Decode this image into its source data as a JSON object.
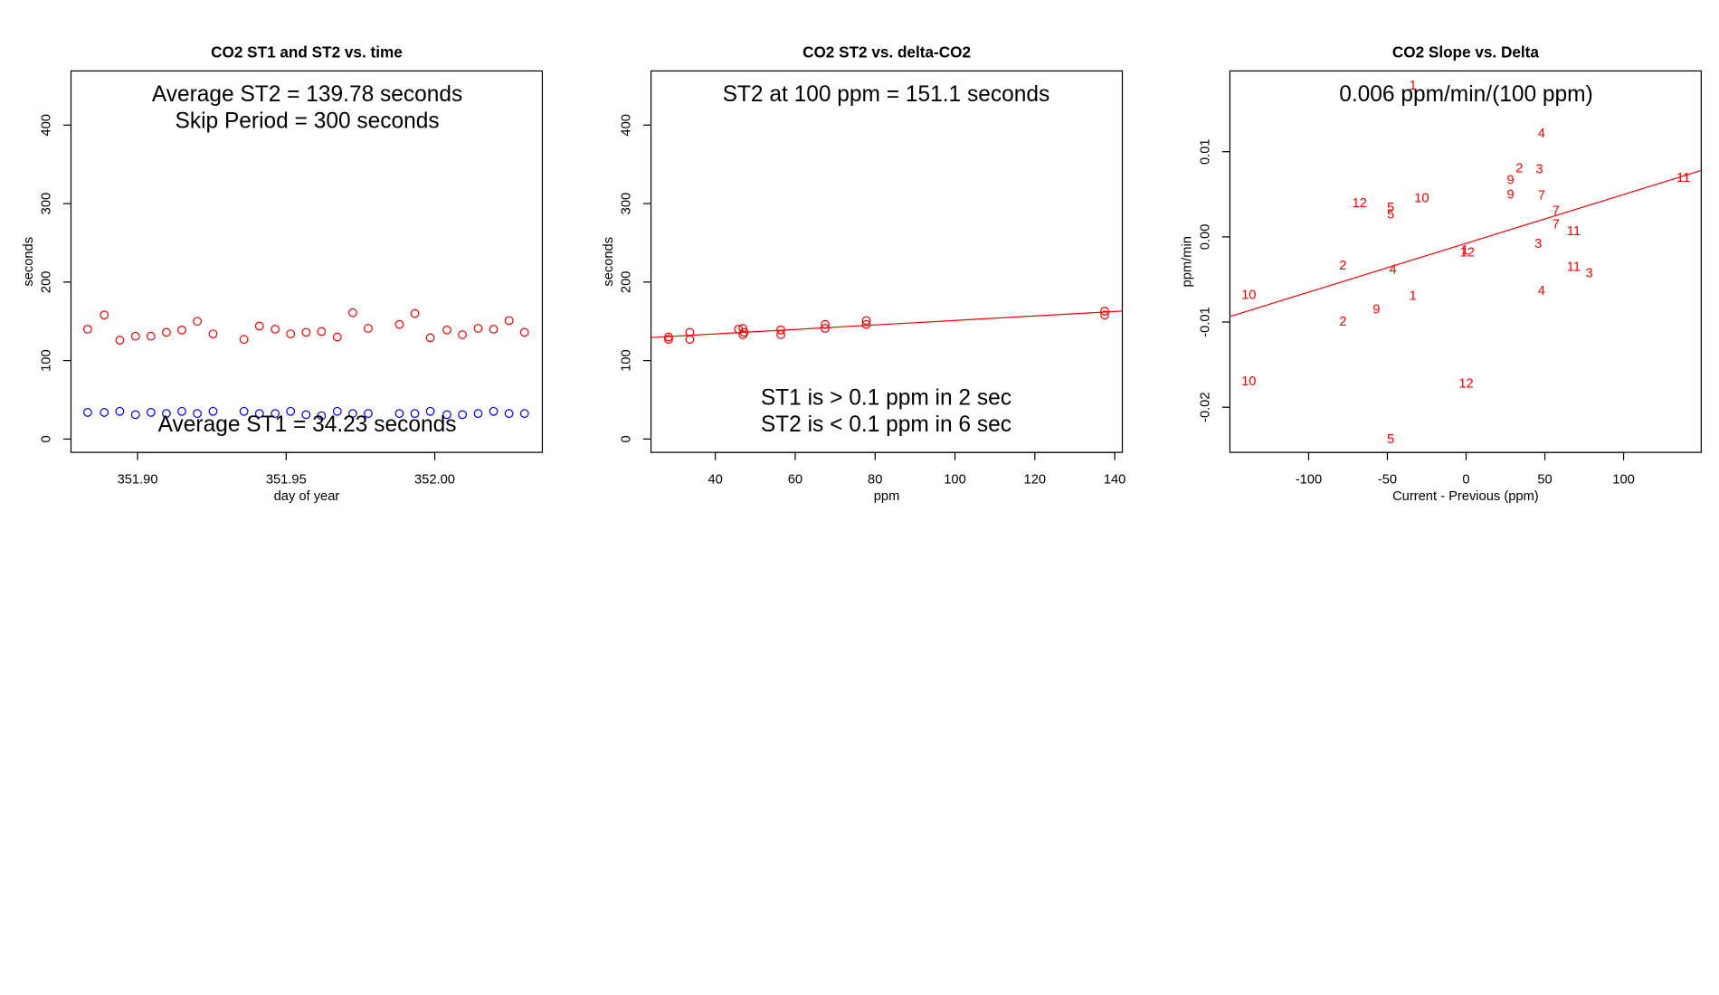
{
  "chart_data": [
    {
      "type": "scatter",
      "title": "CO2 ST1 and ST2 vs. time",
      "x_label": "day of year",
      "y_label": "seconds",
      "xlim": [
        351.8776,
        352.0362
      ],
      "ylim": [
        -17,
        469
      ],
      "xticks": [
        {
          "value": 351.9,
          "label": "351.90"
        },
        351.95,
        {
          "value": 352.0,
          "label": "352.00"
        }
      ],
      "yticks": [
        0,
        100,
        200,
        300,
        400
      ],
      "x": [
        351.8832,
        351.8888,
        351.894,
        351.8993,
        351.9045,
        351.9097,
        351.9149,
        351.9201,
        351.9254,
        351.9358,
        351.941,
        351.9463,
        351.9515,
        351.9567,
        351.9619,
        351.9672,
        351.9724,
        351.9776,
        351.9881,
        351.9933,
        351.9985,
        352.0041,
        352.0093,
        352.0146,
        352.0198,
        352.025,
        352.0302
      ],
      "series": [
        {
          "color": "#ff0000",
          "values": [
            140,
            158,
            126,
            131,
            131,
            136,
            139,
            150,
            134,
            127,
            144,
            140,
            134,
            136,
            137,
            130,
            161,
            141,
            146,
            160,
            129,
            139,
            133,
            141,
            140,
            151,
            136
          ]
        },
        {
          "color": "#0000ff",
          "values": [
            33.9,
            33.9,
            35.3,
            31.1,
            33.9,
            32.5,
            35.3,
            32.5,
            35.3,
            35.3,
            32.5,
            32.5,
            35.3,
            31.1,
            29.7,
            35.3,
            32.5,
            32.5,
            32.5,
            32.5,
            35.3,
            31.1,
            31.1,
            32.5,
            35.3,
            32.5,
            32.5
          ]
        }
      ],
      "annotations": [
        "Average ST2 =  139.78  seconds",
        "Skip Period =  300  seconds",
        "Average ST1 =  34.23  seconds"
      ]
    },
    {
      "type": "scatter",
      "title": "CO2 ST2 vs. delta-CO2",
      "x_label": "ppm",
      "y_label": "seconds",
      "xlim": [
        23.9,
        141.9
      ],
      "ylim": [
        -17,
        469
      ],
      "xticks": [
        40,
        60,
        80,
        100,
        120,
        140
      ],
      "yticks": [
        0,
        100,
        200,
        300,
        400
      ],
      "x": [
        28.3,
        28.3,
        33.6,
        33.6,
        45.8,
        46.9,
        47.2,
        46.9,
        56.4,
        56.4,
        67.5,
        67.5,
        77.8,
        77.8,
        137.5,
        137.5
      ],
      "values": [
        130,
        127,
        136,
        127,
        140,
        141,
        136,
        133,
        139,
        133,
        146,
        141,
        151,
        146,
        163,
        158
      ],
      "color": "#ff0000",
      "fit": {
        "color": "#ff0000",
        "x": [
          23.9,
          141.9
        ],
        "values": [
          129.3,
          163.1
        ]
      },
      "annotations": [
        "ST2 at 100 ppm =  151.1  seconds",
        "ST1 is > 0.1 ppm in 2 sec",
        "ST2 is < 0.1 ppm in 6 sec"
      ]
    },
    {
      "type": "scatter",
      "title": "CO2 Slope vs. Delta",
      "x_label": "Current - Previous (ppm)",
      "y_label": "ppm/min",
      "xlim": [
        -150,
        149.3
      ],
      "ylim": [
        -0.0253,
        0.01948
      ],
      "xticks": [
        -100,
        -50,
        0,
        50,
        100
      ],
      "yticks": [
        -0.02,
        -0.01,
        {
          "value": 0,
          "label": "0.00"
        },
        0.01
      ],
      "x": [
        -33.8,
        47.9,
        33.8,
        46.5,
        28.2,
        28.2,
        -28.2,
        47.9,
        -67.6,
        -47.9,
        -47.9,
        57.0,
        57.0,
        68.3,
        138.0,
        45.8,
        0.7,
        -0.7,
        -78.2,
        -46.5,
        68.3,
        78.2,
        -138.0,
        -33.8,
        47.9,
        -57.0,
        -78.2,
        -138.0,
        0.0,
        -47.9
      ],
      "values": [
        0.0177,
        0.0121,
        0.008,
        0.0079,
        0.0066,
        0.0049,
        0.0045,
        0.0048,
        0.0039,
        0.0034,
        0.0026,
        0.003,
        0.0014,
        0.0006,
        0.0069,
        -0.0009,
        -0.0019,
        -0.0016,
        -0.0034,
        -0.0039,
        -0.0036,
        -0.0043,
        -0.0069,
        -0.007,
        -0.0064,
        -0.0086,
        -0.01,
        -0.017,
        -0.0173,
        -0.0238
      ],
      "labels": [
        "1",
        "4",
        "2",
        "3",
        "9",
        "9",
        "10",
        "7",
        "12",
        "5",
        "5",
        "7",
        "7",
        "11",
        "11",
        "3",
        "12",
        "1",
        "2",
        "4",
        "11",
        "3",
        "10",
        "1",
        "4",
        "9",
        "2",
        "10",
        "12",
        "5"
      ],
      "color": "#ff0000",
      "fit": {
        "color": "#ff0000",
        "x": [
          -150,
          149.3
        ],
        "values": [
          -0.00935,
          0.0078
        ]
      },
      "annotations": [
        "0.006  ppm/min/(100 ppm)"
      ]
    }
  ]
}
